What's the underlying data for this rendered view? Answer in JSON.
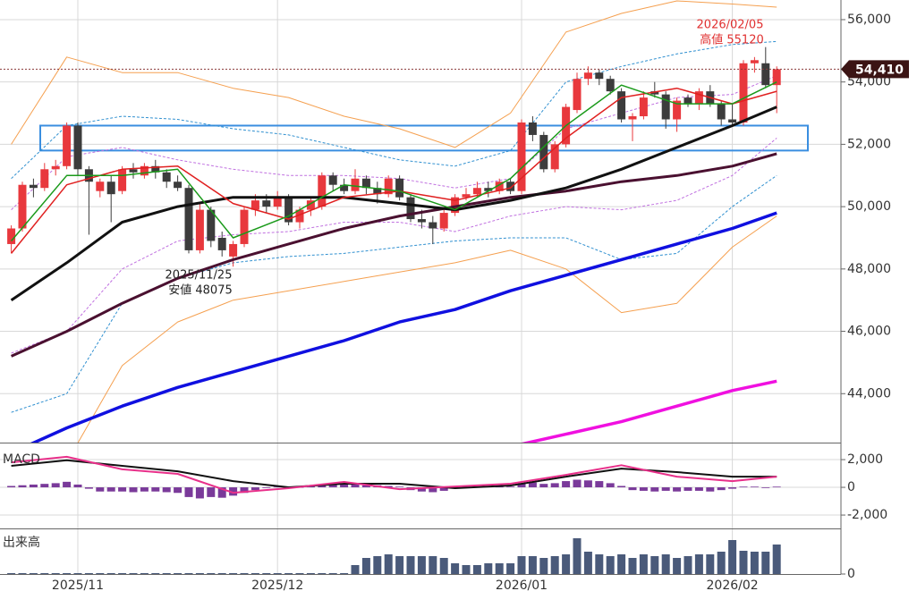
{
  "chart_data": {
    "type": "candlestick",
    "categories": [
      null,
      null,
      null,
      null,
      null,
      null,
      "2025/11",
      null,
      null,
      null,
      null,
      null,
      null,
      null,
      null,
      null,
      null,
      null,
      null,
      null,
      null,
      null,
      null,
      null,
      "2025/12",
      null,
      null,
      null,
      null,
      null,
      null,
      null,
      null,
      null,
      null,
      null,
      null,
      null,
      null,
      null,
      null,
      null,
      null,
      null,
      null,
      null,
      "2026/01",
      null,
      null,
      null,
      null,
      null,
      null,
      null,
      null,
      null,
      null,
      null,
      null,
      null,
      null,
      null,
      null,
      null,
      null,
      "2026/02",
      null,
      null,
      null,
      null
    ],
    "open": [
      48800,
      49300,
      50700,
      50600,
      51200,
      51300,
      52600,
      51200,
      50500,
      50800,
      50500,
      51200,
      51000,
      51300,
      51100,
      50800,
      50600,
      48600,
      49900,
      49000,
      48400,
      48800,
      49900,
      50200,
      50000,
      50300,
      49500,
      49900,
      50000,
      51000,
      50700,
      50500,
      50900,
      50600,
      50400,
      50900,
      50300,
      49600,
      49500,
      49300,
      49800,
      50300,
      50400,
      50600,
      50500,
      50800,
      50500,
      52700,
      52300,
      51200,
      52000,
      53100,
      54100,
      54300,
      54100,
      53700,
      52800,
      52900,
      53700,
      53600,
      52800,
      53500,
      53300,
      53700,
      53300,
      52800,
      52700,
      54600,
      54600,
      53900
    ],
    "high": [
      49400,
      50800,
      50900,
      51400,
      51500,
      52700,
      52700,
      51300,
      50900,
      51000,
      51300,
      51400,
      51400,
      51500,
      51200,
      51000,
      50700,
      50100,
      50000,
      49200,
      48900,
      50000,
      50400,
      50400,
      50500,
      50400,
      50000,
      50300,
      51100,
      51100,
      50900,
      51200,
      51000,
      50800,
      51000,
      51000,
      50400,
      49900,
      49700,
      49900,
      50400,
      50600,
      50800,
      50800,
      50900,
      50900,
      52800,
      52900,
      52400,
      52100,
      53300,
      54300,
      54500,
      54400,
      54200,
      53800,
      53000,
      53700,
      54000,
      53700,
      53500,
      53600,
      53800,
      53900,
      53400,
      53300,
      54700,
      54800,
      55120,
      54500
    ],
    "low": [
      48500,
      49200,
      50300,
      50500,
      51000,
      51200,
      51000,
      49100,
      50300,
      49500,
      50400,
      50900,
      50900,
      50900,
      50600,
      50500,
      48500,
      48500,
      48700,
      48400,
      48075,
      48700,
      49700,
      49800,
      49900,
      49400,
      49300,
      49700,
      49900,
      50500,
      50400,
      50400,
      50400,
      50100,
      50300,
      50200,
      49500,
      49300,
      48800,
      49200,
      49700,
      50200,
      50300,
      50300,
      50400,
      50400,
      50400,
      52100,
      51100,
      51100,
      51900,
      53000,
      53900,
      53900,
      53600,
      52700,
      52100,
      52800,
      53500,
      52500,
      52400,
      53200,
      53100,
      53200,
      52600,
      52600,
      52600,
      54300,
      53800,
      53000
    ],
    "close": [
      49300,
      50700,
      50600,
      51200,
      51300,
      52600,
      51200,
      50800,
      50800,
      50400,
      51200,
      51100,
      51300,
      51100,
      50800,
      50600,
      48600,
      49900,
      48900,
      48600,
      48800,
      49900,
      50200,
      50000,
      50300,
      49500,
      49900,
      50200,
      51000,
      50700,
      50500,
      50900,
      50600,
      50400,
      50900,
      50300,
      49600,
      49500,
      49300,
      49800,
      50300,
      50400,
      50600,
      50500,
      50800,
      50500,
      52700,
      52300,
      51200,
      52000,
      53200,
      54100,
      54300,
      54100,
      53700,
      52800,
      52900,
      53500,
      53600,
      52800,
      53400,
      53300,
      53700,
      53300,
      52800,
      52700,
      54600,
      54700,
      53900,
      54410
    ],
    "up_color": "#e8383d",
    "down_color": "#3c3c3c",
    "ylim": [
      42430,
      56630
    ],
    "yticks": [
      {
        "value": 44000,
        "label": "44,000"
      },
      {
        "value": 46000,
        "label": "46,000"
      },
      {
        "value": 48000,
        "label": "48,000"
      },
      {
        "value": 50000,
        "label": "50,000"
      },
      {
        "value": 52000,
        "label": "52,000"
      },
      {
        "value": 54000,
        "label": "54,000"
      },
      {
        "value": 56000,
        "label": "56,000"
      }
    ],
    "grid": true,
    "overlay_x": [
      0,
      5,
      10,
      15,
      20,
      25,
      30,
      35,
      40,
      45,
      50,
      55,
      60,
      65,
      69
    ],
    "overlays": [
      {
        "color": "#f5a050",
        "width": 1,
        "dash": false,
        "values": [
          52000,
          54800,
          54300,
          54300,
          53800,
          53500,
          52900,
          52500,
          51900,
          53000,
          55600,
          56200,
          56600,
          56500,
          56400
        ]
      },
      {
        "color": "#f5a050",
        "width": 1,
        "dash": false,
        "values": [
          41000,
          41800,
          44900,
          46300,
          47000,
          47300,
          47600,
          47900,
          48200,
          48600,
          48000,
          46600,
          46900,
          48700,
          49700
        ]
      },
      {
        "color": "#3090d0",
        "width": 1,
        "dash": true,
        "values": [
          50900,
          52600,
          52900,
          52800,
          52500,
          52300,
          51900,
          51500,
          51300,
          51800,
          54000,
          54500,
          54900,
          55200,
          55300
        ]
      },
      {
        "color": "#3090d0",
        "width": 1,
        "dash": true,
        "values": [
          43400,
          44000,
          46900,
          47700,
          48200,
          48400,
          48500,
          48700,
          48900,
          49000,
          49000,
          48300,
          48500,
          50000,
          51000
        ]
      },
      {
        "color": "#c070e0",
        "width": 1,
        "dash": true,
        "values": [
          49900,
          51600,
          51900,
          51500,
          51200,
          51000,
          51000,
          50900,
          50600,
          50900,
          52500,
          53000,
          53500,
          53600,
          54200
        ]
      },
      {
        "color": "#c070e0",
        "width": 1,
        "dash": true,
        "values": [
          45300,
          46000,
          48000,
          48900,
          49100,
          49200,
          49500,
          49500,
          49200,
          49700,
          50000,
          49900,
          50200,
          51000,
          52200
        ]
      },
      {
        "color": "#1010e0",
        "width": 3.5,
        "dash": false,
        "values": [
          42100,
          42900,
          43600,
          44200,
          44700,
          45200,
          45700,
          46300,
          46700,
          47300,
          47800,
          48300,
          48800,
          49300,
          49800
        ]
      },
      {
        "color": "#f010e0",
        "width": 3.5,
        "dash": false,
        "values": [
          null,
          null,
          null,
          null,
          null,
          null,
          null,
          null,
          null,
          42300,
          42700,
          43100,
          43600,
          44100,
          44400
        ]
      },
      {
        "color": "#4a1030",
        "width": 3,
        "dash": false,
        "values": [
          45200,
          46000,
          46900,
          47700,
          48300,
          48800,
          49300,
          49700,
          50000,
          50300,
          50500,
          50800,
          51000,
          51300,
          51700
        ]
      },
      {
        "color": "#111111",
        "width": 3,
        "dash": false,
        "values": [
          47000,
          48200,
          49500,
          50000,
          50300,
          50300,
          50300,
          50100,
          49900,
          50200,
          50600,
          51200,
          51900,
          52600,
          53200
        ]
      },
      {
        "color": "#e02020",
        "width": 1.5,
        "dash": false,
        "values": [
          48500,
          50700,
          51200,
          51300,
          50100,
          49600,
          50300,
          50500,
          50200,
          50600,
          52200,
          53500,
          53800,
          53300,
          53700
        ]
      },
      {
        "color": "#1a9a1a",
        "width": 1.5,
        "dash": false,
        "values": [
          48900,
          51000,
          51000,
          51200,
          49000,
          49700,
          50700,
          50500,
          49900,
          50900,
          52600,
          53900,
          53300,
          53300,
          54000
        ]
      }
    ],
    "zone": {
      "range": [
        51800,
        52600
      ],
      "color": "#3a8ee0"
    },
    "last_price": {
      "value": 54410,
      "label": "54,410",
      "color": "#3b1414"
    },
    "annotations": [
      {
        "lines": [
          "2026/02/05",
          "高値 55120"
        ],
        "color": "#e03030"
      },
      {
        "lines": [
          "2025/11/25",
          "安値 48075"
        ],
        "color": "#222222"
      }
    ],
    "macd": {
      "title": "MACD",
      "ylim": [
        -2900,
        3100
      ],
      "yticks": [
        {
          "value": -2000,
          "label": "-2,000"
        },
        0,
        {
          "value": 2000,
          "label": "2,000"
        }
      ],
      "macd_color": "#111111",
      "signal_color": "#e8308a",
      "hist_color": "#7a3a9a",
      "macd": [
        1550,
        1950,
        1550,
        1160,
        450,
        0,
        260,
        260,
        -60,
        130,
        770,
        1350,
        1100,
        770,
        770
      ],
      "signal": [
        1800,
        2200,
        1300,
        970,
        -390,
        -60,
        390,
        -130,
        60,
        260,
        900,
        1600,
        770,
        450,
        770
      ],
      "histogram": [
        100,
        150,
        200,
        250,
        300,
        400,
        200,
        -100,
        -300,
        -300,
        -300,
        -350,
        -300,
        -300,
        -350,
        -400,
        -700,
        -800,
        -700,
        -750,
        -600,
        -400,
        -200,
        -50,
        50,
        50,
        0,
        100,
        150,
        200,
        200,
        200,
        150,
        150,
        100,
        50,
        -200,
        -300,
        -350,
        -250,
        -50,
        50,
        50,
        100,
        100,
        50,
        300,
        350,
        250,
        300,
        450,
        550,
        500,
        450,
        300,
        100,
        -200,
        -250,
        -300,
        -250,
        -300,
        -250,
        -250,
        -300,
        -200,
        -100,
        50,
        50,
        -50,
        50
      ]
    },
    "volume": {
      "title": "出来高",
      "ylim": [
        0,
        50
      ],
      "yticks": [
        0
      ],
      "color": "#4a5a7a",
      "values": [
        1,
        1,
        1,
        1,
        1,
        1,
        1,
        1,
        1,
        1,
        1,
        1,
        1,
        1,
        1,
        1,
        1,
        1,
        1,
        1,
        1,
        1,
        1,
        1,
        1,
        1,
        1,
        1,
        1,
        1,
        1,
        10,
        18,
        20,
        22,
        20,
        20,
        20,
        20,
        18,
        12,
        10,
        10,
        12,
        12,
        12,
        20,
        20,
        18,
        20,
        22,
        40,
        25,
        22,
        20,
        22,
        18,
        22,
        20,
        22,
        18,
        20,
        22,
        22,
        25,
        38,
        26,
        25,
        25,
        33
      ]
    }
  }
}
